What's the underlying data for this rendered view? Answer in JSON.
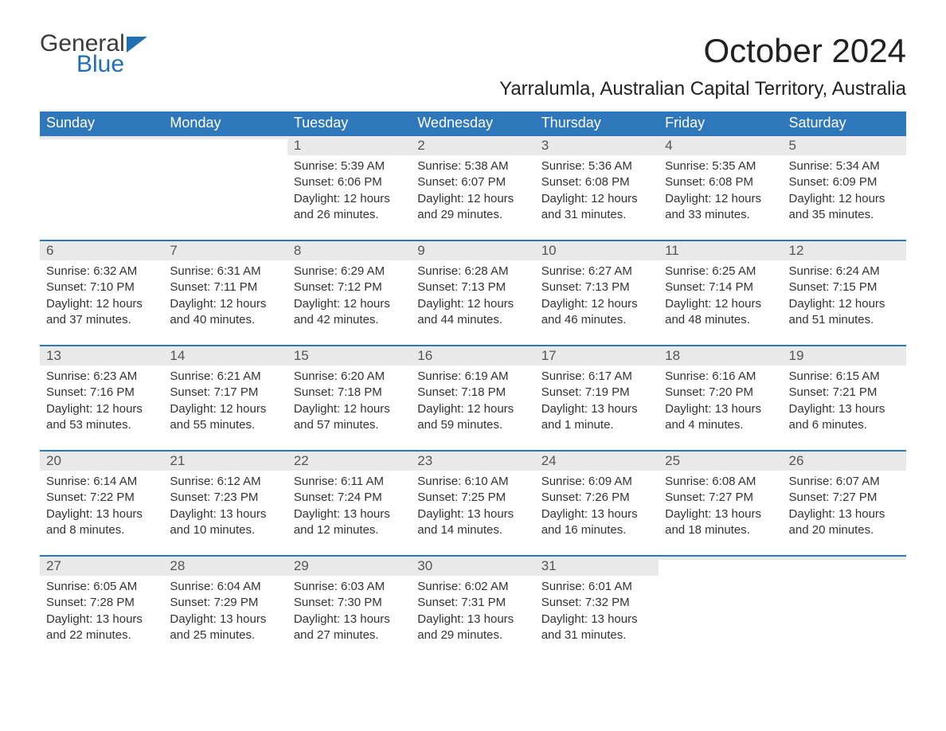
{
  "brand": {
    "line1": "General",
    "line2": "Blue",
    "text_color": "#3b3b3b",
    "accent_color": "#1f6fb2"
  },
  "title": "October 2024",
  "location": "Yarralumla, Australian Capital Territory, Australia",
  "colors": {
    "header_bg": "#2e77bb",
    "header_text": "#ffffff",
    "daynum_bg": "#e9e9e9",
    "daynum_text": "#555555",
    "body_text": "#333333",
    "week_rule": "#2e77bb",
    "page_bg": "#ffffff"
  },
  "fonts": {
    "title_size_pt": 32,
    "location_size_pt": 18,
    "dayhead_size_pt": 14,
    "daynum_size_pt": 13,
    "body_size_pt": 11
  },
  "day_headers": [
    "Sunday",
    "Monday",
    "Tuesday",
    "Wednesday",
    "Thursday",
    "Friday",
    "Saturday"
  ],
  "weeks": [
    [
      {
        "n": "",
        "sunrise": "",
        "sunset": "",
        "daylight": ""
      },
      {
        "n": "",
        "sunrise": "",
        "sunset": "",
        "daylight": ""
      },
      {
        "n": "1",
        "sunrise": "Sunrise: 5:39 AM",
        "sunset": "Sunset: 6:06 PM",
        "daylight": "Daylight: 12 hours and 26 minutes."
      },
      {
        "n": "2",
        "sunrise": "Sunrise: 5:38 AM",
        "sunset": "Sunset: 6:07 PM",
        "daylight": "Daylight: 12 hours and 29 minutes."
      },
      {
        "n": "3",
        "sunrise": "Sunrise: 5:36 AM",
        "sunset": "Sunset: 6:08 PM",
        "daylight": "Daylight: 12 hours and 31 minutes."
      },
      {
        "n": "4",
        "sunrise": "Sunrise: 5:35 AM",
        "sunset": "Sunset: 6:08 PM",
        "daylight": "Daylight: 12 hours and 33 minutes."
      },
      {
        "n": "5",
        "sunrise": "Sunrise: 5:34 AM",
        "sunset": "Sunset: 6:09 PM",
        "daylight": "Daylight: 12 hours and 35 minutes."
      }
    ],
    [
      {
        "n": "6",
        "sunrise": "Sunrise: 6:32 AM",
        "sunset": "Sunset: 7:10 PM",
        "daylight": "Daylight: 12 hours and 37 minutes."
      },
      {
        "n": "7",
        "sunrise": "Sunrise: 6:31 AM",
        "sunset": "Sunset: 7:11 PM",
        "daylight": "Daylight: 12 hours and 40 minutes."
      },
      {
        "n": "8",
        "sunrise": "Sunrise: 6:29 AM",
        "sunset": "Sunset: 7:12 PM",
        "daylight": "Daylight: 12 hours and 42 minutes."
      },
      {
        "n": "9",
        "sunrise": "Sunrise: 6:28 AM",
        "sunset": "Sunset: 7:13 PM",
        "daylight": "Daylight: 12 hours and 44 minutes."
      },
      {
        "n": "10",
        "sunrise": "Sunrise: 6:27 AM",
        "sunset": "Sunset: 7:13 PM",
        "daylight": "Daylight: 12 hours and 46 minutes."
      },
      {
        "n": "11",
        "sunrise": "Sunrise: 6:25 AM",
        "sunset": "Sunset: 7:14 PM",
        "daylight": "Daylight: 12 hours and 48 minutes."
      },
      {
        "n": "12",
        "sunrise": "Sunrise: 6:24 AM",
        "sunset": "Sunset: 7:15 PM",
        "daylight": "Daylight: 12 hours and 51 minutes."
      }
    ],
    [
      {
        "n": "13",
        "sunrise": "Sunrise: 6:23 AM",
        "sunset": "Sunset: 7:16 PM",
        "daylight": "Daylight: 12 hours and 53 minutes."
      },
      {
        "n": "14",
        "sunrise": "Sunrise: 6:21 AM",
        "sunset": "Sunset: 7:17 PM",
        "daylight": "Daylight: 12 hours and 55 minutes."
      },
      {
        "n": "15",
        "sunrise": "Sunrise: 6:20 AM",
        "sunset": "Sunset: 7:18 PM",
        "daylight": "Daylight: 12 hours and 57 minutes."
      },
      {
        "n": "16",
        "sunrise": "Sunrise: 6:19 AM",
        "sunset": "Sunset: 7:18 PM",
        "daylight": "Daylight: 12 hours and 59 minutes."
      },
      {
        "n": "17",
        "sunrise": "Sunrise: 6:17 AM",
        "sunset": "Sunset: 7:19 PM",
        "daylight": "Daylight: 13 hours and 1 minute."
      },
      {
        "n": "18",
        "sunrise": "Sunrise: 6:16 AM",
        "sunset": "Sunset: 7:20 PM",
        "daylight": "Daylight: 13 hours and 4 minutes."
      },
      {
        "n": "19",
        "sunrise": "Sunrise: 6:15 AM",
        "sunset": "Sunset: 7:21 PM",
        "daylight": "Daylight: 13 hours and 6 minutes."
      }
    ],
    [
      {
        "n": "20",
        "sunrise": "Sunrise: 6:14 AM",
        "sunset": "Sunset: 7:22 PM",
        "daylight": "Daylight: 13 hours and 8 minutes."
      },
      {
        "n": "21",
        "sunrise": "Sunrise: 6:12 AM",
        "sunset": "Sunset: 7:23 PM",
        "daylight": "Daylight: 13 hours and 10 minutes."
      },
      {
        "n": "22",
        "sunrise": "Sunrise: 6:11 AM",
        "sunset": "Sunset: 7:24 PM",
        "daylight": "Daylight: 13 hours and 12 minutes."
      },
      {
        "n": "23",
        "sunrise": "Sunrise: 6:10 AM",
        "sunset": "Sunset: 7:25 PM",
        "daylight": "Daylight: 13 hours and 14 minutes."
      },
      {
        "n": "24",
        "sunrise": "Sunrise: 6:09 AM",
        "sunset": "Sunset: 7:26 PM",
        "daylight": "Daylight: 13 hours and 16 minutes."
      },
      {
        "n": "25",
        "sunrise": "Sunrise: 6:08 AM",
        "sunset": "Sunset: 7:27 PM",
        "daylight": "Daylight: 13 hours and 18 minutes."
      },
      {
        "n": "26",
        "sunrise": "Sunrise: 6:07 AM",
        "sunset": "Sunset: 7:27 PM",
        "daylight": "Daylight: 13 hours and 20 minutes."
      }
    ],
    [
      {
        "n": "27",
        "sunrise": "Sunrise: 6:05 AM",
        "sunset": "Sunset: 7:28 PM",
        "daylight": "Daylight: 13 hours and 22 minutes."
      },
      {
        "n": "28",
        "sunrise": "Sunrise: 6:04 AM",
        "sunset": "Sunset: 7:29 PM",
        "daylight": "Daylight: 13 hours and 25 minutes."
      },
      {
        "n": "29",
        "sunrise": "Sunrise: 6:03 AM",
        "sunset": "Sunset: 7:30 PM",
        "daylight": "Daylight: 13 hours and 27 minutes."
      },
      {
        "n": "30",
        "sunrise": "Sunrise: 6:02 AM",
        "sunset": "Sunset: 7:31 PM",
        "daylight": "Daylight: 13 hours and 29 minutes."
      },
      {
        "n": "31",
        "sunrise": "Sunrise: 6:01 AM",
        "sunset": "Sunset: 7:32 PM",
        "daylight": "Daylight: 13 hours and 31 minutes."
      },
      {
        "n": "",
        "sunrise": "",
        "sunset": "",
        "daylight": ""
      },
      {
        "n": "",
        "sunrise": "",
        "sunset": "",
        "daylight": ""
      }
    ]
  ]
}
